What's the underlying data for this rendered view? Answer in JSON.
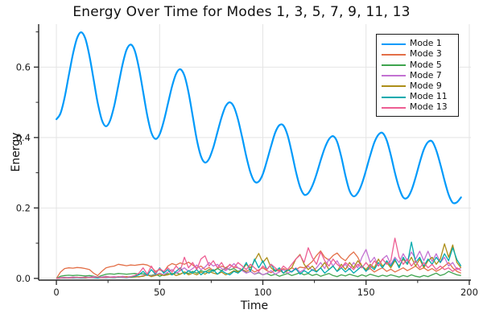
{
  "title": "Energy Over Time for Modes 1, 3, 5, 7, 9, 11, 13",
  "axes": {
    "xlabel": "Time",
    "ylabel": "Energy"
  },
  "colors": {
    "background": "#ffffff",
    "grid": "#e4e4e4",
    "spine": "#262626",
    "tick_label": "#1a1a1a",
    "legend_border": "#1a1a1a"
  },
  "chart_data": {
    "type": "line",
    "title": "Energy Over Time for Modes 1, 3, 5, 7, 9, 11, 13",
    "xlabel": "Time",
    "ylabel": "Energy",
    "xlim": [
      -8.6,
      200.8
    ],
    "ylim": [
      -0.005,
      0.722
    ],
    "grid": true,
    "legend_position": "top-right",
    "x_ticks": [
      0,
      50,
      100,
      150,
      200
    ],
    "x_tick_labels": [
      "0",
      "50",
      "100",
      "150",
      "200"
    ],
    "x_minor_ticks": [
      25,
      75,
      125,
      175
    ],
    "y_ticks": [
      0.0,
      0.2,
      0.4,
      0.6
    ],
    "y_tick_labels": [
      "0.0",
      "0.2",
      "0.4",
      "0.6"
    ],
    "y_minor_ticks": [
      0.1,
      0.3,
      0.5,
      0.7
    ],
    "t_start": 0,
    "t_step": 2,
    "series": [
      {
        "name": "Mode 1",
        "color": "#009AFA",
        "smooth": true,
        "width": 2.2,
        "values": [
          0.452,
          0.469,
          0.514,
          0.576,
          0.637,
          0.682,
          0.699,
          0.681,
          0.632,
          0.566,
          0.499,
          0.45,
          0.432,
          0.448,
          0.49,
          0.548,
          0.606,
          0.649,
          0.664,
          0.646,
          0.597,
          0.53,
          0.463,
          0.414,
          0.396,
          0.409,
          0.446,
          0.495,
          0.545,
          0.581,
          0.594,
          0.576,
          0.528,
          0.462,
          0.395,
          0.347,
          0.329,
          0.34,
          0.372,
          0.415,
          0.457,
          0.489,
          0.5,
          0.487,
          0.451,
          0.4,
          0.346,
          0.301,
          0.275,
          0.275,
          0.296,
          0.334,
          0.376,
          0.414,
          0.435,
          0.434,
          0.406,
          0.358,
          0.304,
          0.26,
          0.238,
          0.242,
          0.263,
          0.296,
          0.335,
          0.37,
          0.395,
          0.404,
          0.388,
          0.345,
          0.292,
          0.249,
          0.233,
          0.243,
          0.269,
          0.307,
          0.349,
          0.386,
          0.408,
          0.413,
          0.392,
          0.35,
          0.3,
          0.257,
          0.23,
          0.229,
          0.25,
          0.287,
          0.329,
          0.366,
          0.387,
          0.389,
          0.364,
          0.324,
          0.278,
          0.238,
          0.215,
          0.216,
          0.23
        ]
      },
      {
        "name": "Mode 3",
        "color": "#E36F47",
        "smooth": false,
        "width": 1.3,
        "values": [
          0.0,
          0.018,
          0.028,
          0.03,
          0.029,
          0.031,
          0.03,
          0.028,
          0.025,
          0.015,
          0.008,
          0.02,
          0.03,
          0.033,
          0.035,
          0.04,
          0.038,
          0.036,
          0.038,
          0.037,
          0.039,
          0.04,
          0.038,
          0.032,
          0.02,
          0.025,
          0.018,
          0.035,
          0.042,
          0.038,
          0.044,
          0.04,
          0.046,
          0.038,
          0.03,
          0.035,
          0.025,
          0.031,
          0.022,
          0.028,
          0.035,
          0.03,
          0.038,
          0.032,
          0.03,
          0.025,
          0.02,
          0.026,
          0.018,
          0.024,
          0.03,
          0.022,
          0.016,
          0.025,
          0.02,
          0.028,
          0.022,
          0.03,
          0.025,
          0.032,
          0.03,
          0.038,
          0.048,
          0.065,
          0.078,
          0.06,
          0.052,
          0.065,
          0.072,
          0.058,
          0.05,
          0.065,
          0.075,
          0.06,
          0.035,
          0.022,
          0.028,
          0.018,
          0.025,
          0.03,
          0.02,
          0.026,
          0.018,
          0.024,
          0.03,
          0.022,
          0.028,
          0.035,
          0.025,
          0.03,
          0.022,
          0.028,
          0.02,
          0.026,
          0.035,
          0.045,
          0.03,
          0.02,
          0.015
        ]
      },
      {
        "name": "Mode 5",
        "color": "#3EA44E",
        "smooth": false,
        "width": 1.3,
        "values": [
          0.0,
          0.006,
          0.008,
          0.009,
          0.008,
          0.009,
          0.008,
          0.007,
          0.008,
          0.006,
          0.004,
          0.008,
          0.012,
          0.013,
          0.012,
          0.014,
          0.013,
          0.012,
          0.013,
          0.014,
          0.012,
          0.013,
          0.01,
          0.008,
          0.012,
          0.006,
          0.01,
          0.014,
          0.01,
          0.016,
          0.012,
          0.018,
          0.014,
          0.02,
          0.015,
          0.022,
          0.018,
          0.025,
          0.02,
          0.028,
          0.022,
          0.03,
          0.024,
          0.028,
          0.02,
          0.024,
          0.016,
          0.02,
          0.012,
          0.016,
          0.01,
          0.014,
          0.008,
          0.012,
          0.006,
          0.01,
          0.014,
          0.008,
          0.012,
          0.016,
          0.01,
          0.014,
          0.008,
          0.012,
          0.006,
          0.01,
          0.014,
          0.008,
          0.005,
          0.01,
          0.007,
          0.012,
          0.008,
          0.005,
          0.01,
          0.006,
          0.012,
          0.008,
          0.005,
          0.009,
          0.006,
          0.01,
          0.007,
          0.004,
          0.008,
          0.005,
          0.01,
          0.006,
          0.004,
          0.008,
          0.005,
          0.01,
          0.015,
          0.008,
          0.012,
          0.02,
          0.015,
          0.01,
          0.008
        ]
      },
      {
        "name": "Mode 7",
        "color": "#C371D2",
        "smooth": false,
        "width": 1.3,
        "values": [
          0.0,
          0.002,
          0.003,
          0.002,
          0.004,
          0.003,
          0.002,
          0.004,
          0.003,
          0.005,
          0.003,
          0.004,
          0.006,
          0.004,
          0.005,
          0.003,
          0.006,
          0.004,
          0.005,
          0.006,
          0.004,
          0.008,
          0.012,
          0.006,
          0.01,
          0.015,
          0.01,
          0.018,
          0.025,
          0.015,
          0.022,
          0.03,
          0.02,
          0.028,
          0.038,
          0.025,
          0.032,
          0.045,
          0.035,
          0.04,
          0.028,
          0.022,
          0.03,
          0.042,
          0.03,
          0.022,
          0.015,
          0.02,
          0.012,
          0.018,
          0.01,
          0.015,
          0.022,
          0.012,
          0.018,
          0.025,
          0.015,
          0.02,
          0.03,
          0.018,
          0.025,
          0.035,
          0.022,
          0.03,
          0.045,
          0.028,
          0.055,
          0.035,
          0.05,
          0.03,
          0.04,
          0.025,
          0.045,
          0.03,
          0.06,
          0.082,
          0.045,
          0.06,
          0.035,
          0.055,
          0.065,
          0.04,
          0.06,
          0.045,
          0.07,
          0.05,
          0.075,
          0.055,
          0.077,
          0.05,
          0.077,
          0.048,
          0.07,
          0.045,
          0.06,
          0.035,
          0.045,
          0.025,
          0.03
        ]
      },
      {
        "name": "Mode 9",
        "color": "#AC8E18",
        "smooth": false,
        "width": 1.3,
        "values": [
          0.0,
          0.001,
          0.002,
          0.001,
          0.002,
          0.003,
          0.002,
          0.001,
          0.003,
          0.002,
          0.003,
          0.002,
          0.004,
          0.003,
          0.002,
          0.004,
          0.003,
          0.005,
          0.003,
          0.004,
          0.005,
          0.006,
          0.01,
          0.005,
          0.008,
          0.012,
          0.008,
          0.01,
          0.015,
          0.008,
          0.012,
          0.018,
          0.01,
          0.015,
          0.01,
          0.018,
          0.012,
          0.02,
          0.015,
          0.012,
          0.018,
          0.01,
          0.015,
          0.022,
          0.018,
          0.025,
          0.04,
          0.03,
          0.05,
          0.071,
          0.045,
          0.059,
          0.03,
          0.02,
          0.025,
          0.015,
          0.022,
          0.03,
          0.055,
          0.068,
          0.04,
          0.025,
          0.035,
          0.02,
          0.03,
          0.045,
          0.025,
          0.035,
          0.02,
          0.04,
          0.025,
          0.045,
          0.03,
          0.05,
          0.035,
          0.025,
          0.04,
          0.03,
          0.055,
          0.035,
          0.045,
          0.03,
          0.05,
          0.035,
          0.055,
          0.04,
          0.06,
          0.035,
          0.055,
          0.03,
          0.05,
          0.06,
          0.04,
          0.055,
          0.098,
          0.06,
          0.095,
          0.045,
          0.03
        ]
      },
      {
        "name": "Mode 11",
        "color": "#00AAAE",
        "smooth": false,
        "width": 1.3,
        "values": [
          0.0,
          0.001,
          0.001,
          0.002,
          0.001,
          0.002,
          0.001,
          0.002,
          0.003,
          0.002,
          0.001,
          0.003,
          0.002,
          0.003,
          0.002,
          0.004,
          0.003,
          0.002,
          0.004,
          0.006,
          0.01,
          0.02,
          0.008,
          0.025,
          0.012,
          0.03,
          0.015,
          0.025,
          0.01,
          0.02,
          0.03,
          0.012,
          0.022,
          0.015,
          0.025,
          0.01,
          0.02,
          0.015,
          0.025,
          0.012,
          0.022,
          0.015,
          0.01,
          0.02,
          0.015,
          0.025,
          0.045,
          0.02,
          0.055,
          0.03,
          0.05,
          0.025,
          0.04,
          0.02,
          0.03,
          0.015,
          0.025,
          0.018,
          0.028,
          0.012,
          0.022,
          0.015,
          0.025,
          0.018,
          0.03,
          0.015,
          0.025,
          0.035,
          0.02,
          0.03,
          0.018,
          0.028,
          0.015,
          0.025,
          0.035,
          0.02,
          0.035,
          0.025,
          0.045,
          0.03,
          0.05,
          0.035,
          0.055,
          0.03,
          0.06,
          0.04,
          0.103,
          0.045,
          0.06,
          0.035,
          0.055,
          0.04,
          0.06,
          0.045,
          0.07,
          0.05,
          0.087,
          0.053,
          0.035
        ]
      },
      {
        "name": "Mode 13",
        "color": "#ED5E93",
        "smooth": false,
        "width": 1.3,
        "values": [
          0.0,
          0.001,
          0.002,
          0.001,
          0.002,
          0.003,
          0.002,
          0.003,
          0.002,
          0.003,
          0.004,
          0.002,
          0.003,
          0.004,
          0.003,
          0.005,
          0.004,
          0.003,
          0.005,
          0.008,
          0.015,
          0.03,
          0.012,
          0.035,
          0.015,
          0.028,
          0.02,
          0.03,
          0.018,
          0.035,
          0.022,
          0.06,
          0.03,
          0.045,
          0.025,
          0.055,
          0.064,
          0.035,
          0.05,
          0.03,
          0.045,
          0.025,
          0.04,
          0.03,
          0.045,
          0.035,
          0.025,
          0.04,
          0.03,
          0.02,
          0.035,
          0.025,
          0.04,
          0.03,
          0.02,
          0.035,
          0.025,
          0.04,
          0.055,
          0.066,
          0.045,
          0.087,
          0.059,
          0.04,
          0.075,
          0.05,
          0.035,
          0.055,
          0.04,
          0.03,
          0.045,
          0.035,
          0.025,
          0.04,
          0.03,
          0.045,
          0.03,
          0.05,
          0.035,
          0.055,
          0.04,
          0.05,
          0.114,
          0.06,
          0.04,
          0.055,
          0.035,
          0.05,
          0.03,
          0.045,
          0.03,
          0.04,
          0.025,
          0.035,
          0.025,
          0.03,
          0.02,
          0.03,
          0.022
        ]
      }
    ]
  }
}
